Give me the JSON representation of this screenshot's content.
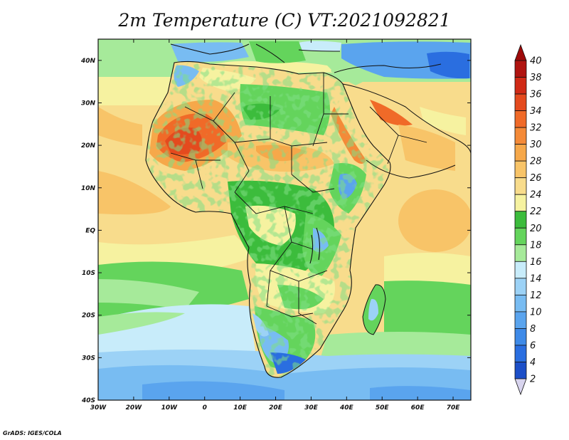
{
  "title": "2m Temperature (C) VT:2021092821",
  "credit": "GrADS: IGES/COLA",
  "map": {
    "lon_range": [
      -30,
      75
    ],
    "lat_range": [
      -40,
      45
    ],
    "x_ticks": [
      {
        "lon": -30,
        "label": "30W"
      },
      {
        "lon": -20,
        "label": "20W"
      },
      {
        "lon": -10,
        "label": "10W"
      },
      {
        "lon": 0,
        "label": "0"
      },
      {
        "lon": 10,
        "label": "10E"
      },
      {
        "lon": 20,
        "label": "20E"
      },
      {
        "lon": 30,
        "label": "30E"
      },
      {
        "lon": 40,
        "label": "40E"
      },
      {
        "lon": 50,
        "label": "50E"
      },
      {
        "lon": 60,
        "label": "60E"
      },
      {
        "lon": 70,
        "label": "70E"
      }
    ],
    "y_ticks": [
      {
        "lat": 40,
        "label": "40N"
      },
      {
        "lat": 30,
        "label": "30N"
      },
      {
        "lat": 20,
        "label": "20N"
      },
      {
        "lat": 10,
        "label": "10N"
      },
      {
        "lat": 0,
        "label": "EQ"
      },
      {
        "lat": -10,
        "label": "10S"
      },
      {
        "lat": -20,
        "label": "20S"
      },
      {
        "lat": -30,
        "label": "30S"
      },
      {
        "lat": -40,
        "label": "40S"
      }
    ]
  },
  "colorbar": {
    "levels": [
      "2",
      "4",
      "6",
      "8",
      "10",
      "12",
      "14",
      "16",
      "18",
      "20",
      "22",
      "24",
      "26",
      "28",
      "30",
      "32",
      "34",
      "36",
      "38",
      "40"
    ],
    "colors": [
      "#1e2e9e",
      "#1c4fc8",
      "#2a6ee0",
      "#3e8ae8",
      "#5aa4ee",
      "#78bcf2",
      "#9cd2f6",
      "#c8ecfa",
      "#a6ea9a",
      "#64d45c",
      "#3cbc3c",
      "#f6f2a0",
      "#f8dc8c",
      "#f8c468",
      "#f6a84a",
      "#f48a38",
      "#f06a28",
      "#e44a1e",
      "#d02a16",
      "#b01410"
    ],
    "min_color": "#d8d4ee",
    "max_color": "#9e0a0a"
  }
}
